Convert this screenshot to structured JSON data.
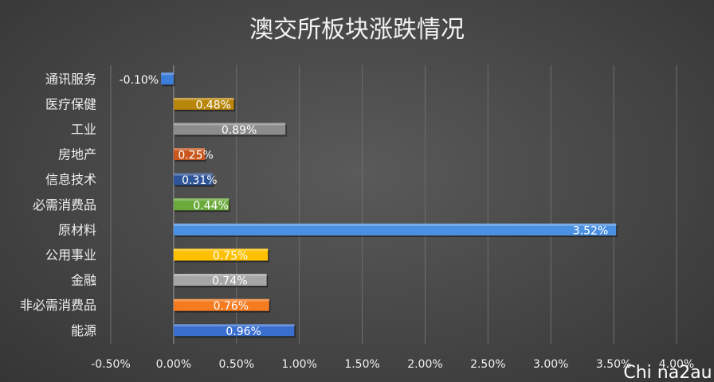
{
  "chart_data": {
    "type": "bar",
    "orientation": "horizontal",
    "title": "澳交所板块涨跌情况",
    "categories": [
      "通讯服务",
      "医疗保健",
      "工业",
      "房地产",
      "信息技术",
      "必需消费品",
      "原材料",
      "公用事业",
      "金融",
      "非必需消费品",
      "能源"
    ],
    "values": [
      -0.1,
      0.48,
      0.89,
      0.25,
      0.31,
      0.44,
      3.52,
      0.75,
      0.74,
      0.76,
      0.96
    ],
    "data_labels": [
      "-0.10%",
      "0.48%",
      "0.89%",
      "0.25%",
      "0.31%",
      "0.44%",
      "3.52%",
      "0.75%",
      "0.74%",
      "0.76%",
      "0.96%"
    ],
    "bar_colors": [
      "#3b7dd8",
      "#b8860b",
      "#8c8c8c",
      "#c8561c",
      "#2e5597",
      "#6aaa3a",
      "#4a90e2",
      "#ffc000",
      "#a6a6a6",
      "#f47b20",
      "#3a6fd0"
    ],
    "xlim": [
      -0.5,
      4.0
    ],
    "xticks": [
      -0.5,
      0.0,
      0.5,
      1.0,
      1.5,
      2.0,
      2.5,
      3.0,
      3.5,
      4.0
    ],
    "xtick_labels": [
      "-0.50%",
      "0.00%",
      "0.50%",
      "1.00%",
      "1.50%",
      "2.00%",
      "2.50%",
      "3.00%",
      "3.50%",
      "4.00%"
    ],
    "grid": "vertical",
    "legend": "none"
  },
  "watermark": "Chi na2au"
}
